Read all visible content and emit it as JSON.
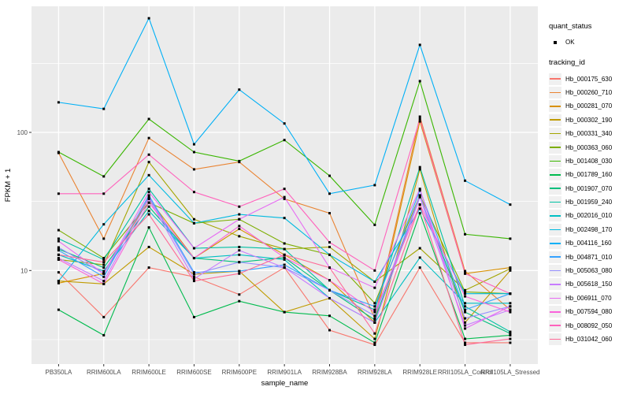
{
  "figure": {
    "background": "#FFFFFF",
    "panel_background": "#EBEBEB",
    "grid_color": "#FFFFFF",
    "tick_label_color": "#4D4D4D",
    "axis_title_color": "#000000",
    "point_color": "#000000"
  },
  "legend": {
    "quant_status_title": "quant_status",
    "quant_status_items": [
      {
        "label": "OK"
      }
    ],
    "tracking_title": "tracking_id"
  },
  "chart_data": {
    "type": "line",
    "title": "",
    "xlabel": "sample_name",
    "ylabel": "FPKM + 1",
    "y_scale": "log10",
    "ylim": [
      2.1,
      820
    ],
    "y_major_ticks": [
      {
        "value": 10,
        "label": "10"
      },
      {
        "value": 100,
        "label": "100"
      }
    ],
    "y_minor_ticks": [
      3.162,
      31.62,
      316.2
    ],
    "grid": "on",
    "legend_position": "right",
    "categories": [
      "PB350LA",
      "RRIM600LA",
      "RRIM600LE",
      "RRIM600SE",
      "RRIM600PE",
      "RRIM901LA",
      "RRIM928BA",
      "RRIM928LA",
      "RRIM928LE",
      "RRII105LA_Control",
      "RRII105LA_Stressed"
    ],
    "series": [
      {
        "name": "Hb_000175_630",
        "color": "#F8766D",
        "values": [
          9.7,
          4.6,
          10.5,
          9.0,
          6.7,
          10.5,
          3.7,
          2.9,
          10.5,
          3.0,
          3.0
        ]
      },
      {
        "name": "Hb_000260_710",
        "color": "#EA8331",
        "values": [
          71,
          17,
          91,
          54,
          61,
          33,
          26,
          4.5,
          130,
          9.9,
          5.2
        ]
      },
      {
        "name": "Hb_000281_070",
        "color": "#D89000",
        "values": [
          8.1,
          9.5,
          33,
          12.3,
          20,
          13,
          8.5,
          4.2,
          120,
          9.5,
          10.5
        ]
      },
      {
        "name": "Hb_000302_190",
        "color": "#C09B00",
        "values": [
          8.4,
          8.0,
          14.8,
          9.4,
          9.9,
          5.0,
          6.3,
          3.2,
          54,
          4.2,
          10.0
        ]
      },
      {
        "name": "Hb_000331_340",
        "color": "#A3A500",
        "values": [
          12.0,
          11.0,
          61,
          23.5,
          17.7,
          14.3,
          14.8,
          8.3,
          14.5,
          7.2,
          10.3
        ]
      },
      {
        "name": "Hb_000363_060",
        "color": "#7CAE00",
        "values": [
          19.6,
          12.3,
          31,
          22,
          23.5,
          15.7,
          13,
          5.8,
          35,
          7.0,
          6.8
        ]
      },
      {
        "name": "Hb_001408_030",
        "color": "#39B600",
        "values": [
          72,
          48,
          125,
          72,
          62,
          88,
          48.5,
          21.4,
          235,
          18.3,
          17
        ]
      },
      {
        "name": "Hb_001789_160",
        "color": "#00BB4E",
        "values": [
          5.2,
          3.4,
          20.5,
          4.6,
          6.0,
          5.0,
          4.7,
          3.0,
          26,
          3.2,
          3.4
        ]
      },
      {
        "name": "Hb_001907_070",
        "color": "#00BF7D",
        "values": [
          14.3,
          10.5,
          29,
          12.3,
          11.5,
          12.4,
          7.2,
          4.4,
          34,
          5.0,
          3.5
        ]
      },
      {
        "name": "Hb_001959_240",
        "color": "#00C1A3",
        "values": [
          17,
          12,
          39,
          14.5,
          14.8,
          14.3,
          7.2,
          5.2,
          56,
          5.5,
          3.6
        ]
      },
      {
        "name": "Hb_002016_010",
        "color": "#00BFC4",
        "values": [
          13,
          9.9,
          27,
          12.3,
          13,
          12,
          6.3,
          4.2,
          12.4,
          5.8,
          5.8
        ]
      },
      {
        "name": "Hb_002498_170",
        "color": "#00BAE0",
        "values": [
          8.4,
          21.6,
          49,
          22,
          25.5,
          24,
          13,
          8.3,
          28,
          6.8,
          6.8
        ]
      },
      {
        "name": "Hb_004116_160",
        "color": "#00B0F6",
        "values": [
          165,
          148,
          670,
          82,
          204,
          116,
          36,
          41.5,
          430,
          44.7,
          30
        ]
      },
      {
        "name": "Hb_004871_010",
        "color": "#35A2FF",
        "values": [
          14,
          9.0,
          35,
          9.7,
          9.9,
          11,
          7.2,
          5.5,
          38,
          5.2,
          6.8
        ]
      },
      {
        "name": "Hb_005063_080",
        "color": "#9590FF",
        "values": [
          14.7,
          9.5,
          34,
          9.4,
          11.5,
          10.5,
          7.2,
          4.7,
          35,
          4.5,
          5.5
        ]
      },
      {
        "name": "Hb_005618_150",
        "color": "#C77CFF",
        "values": [
          12.3,
          8.4,
          33,
          8.7,
          14,
          10.5,
          6.3,
          4.2,
          34,
          4.0,
          5.2
        ]
      },
      {
        "name": "Hb_006911_070",
        "color": "#E76BF3",
        "values": [
          16.3,
          9.5,
          37,
          14.5,
          23.5,
          34,
          10.5,
          7.5,
          39,
          3.8,
          5.5
        ]
      },
      {
        "name": "Hb_007594_080",
        "color": "#FA62DB",
        "values": [
          12,
          8.0,
          31,
          12.3,
          21,
          12.4,
          8.5,
          5.0,
          30,
          6.5,
          5.0
        ]
      },
      {
        "name": "Hb_008092_050",
        "color": "#FF62BC",
        "values": [
          36,
          36,
          69,
          37,
          29,
          39,
          16,
          10,
          125,
          9.5,
          6.8
        ]
      },
      {
        "name": "Hb_031042_060",
        "color": "#FF6A98",
        "values": [
          13,
          11.5,
          25.5,
          8.4,
          9.5,
          13,
          10.5,
          3.5,
          30,
          2.9,
          3.2
        ]
      }
    ]
  }
}
